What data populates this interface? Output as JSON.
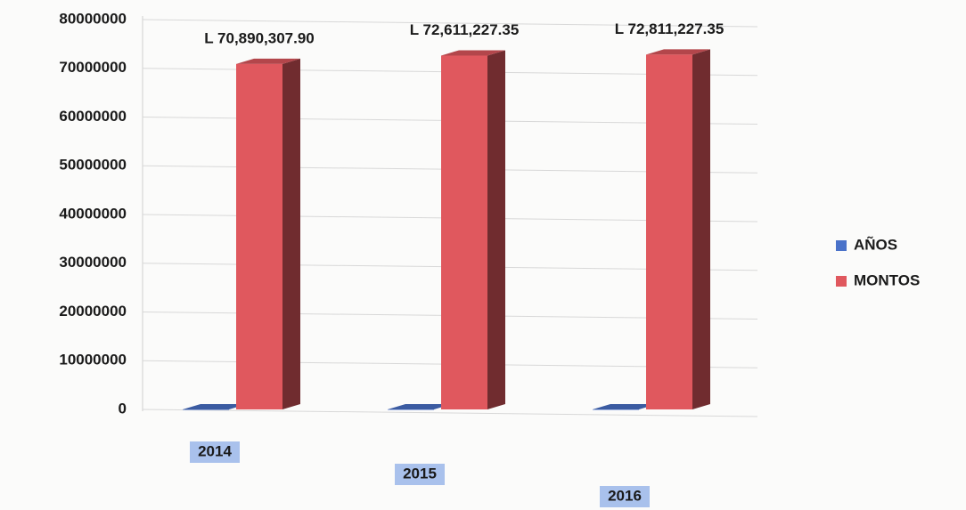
{
  "chart_data": {
    "type": "bar3d",
    "categories": [
      "2014",
      "2015",
      "2016"
    ],
    "series": [
      {
        "name": "AÑOS",
        "color": "#4a72c9",
        "values": [
          2014,
          2015,
          2016
        ]
      },
      {
        "name": "MONTOS",
        "color": "#e0585e",
        "values": [
          70890307.9,
          72611227.35,
          72811227.35
        ],
        "value_labels": [
          "L 70,890,307.90",
          "L 72,611,227.35",
          "L 72,811,227.35"
        ]
      }
    ],
    "ylim": [
      0,
      80000000
    ],
    "yticks": [
      0,
      10000000,
      20000000,
      30000000,
      40000000,
      50000000,
      60000000,
      70000000,
      80000000
    ],
    "grid": true,
    "legend": "right"
  }
}
